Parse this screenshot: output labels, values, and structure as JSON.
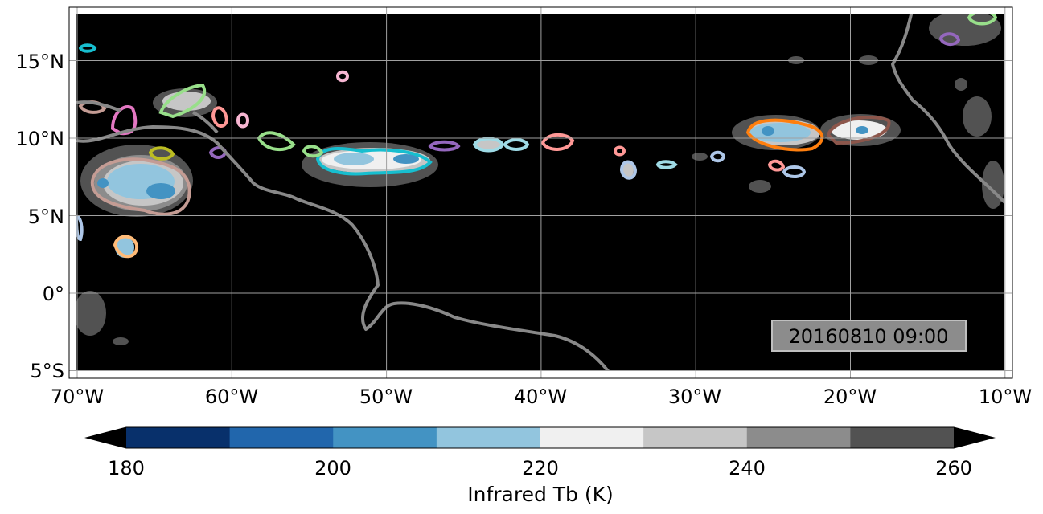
{
  "map": {
    "timestamp": "20160810 09:00",
    "longitude_ticks": [
      "70°W",
      "60°W",
      "50°W",
      "40°W",
      "30°W",
      "20°W",
      "10°W"
    ],
    "latitude_ticks": [
      "15°N",
      "10°N",
      "5°N",
      "0°",
      "5°S"
    ],
    "extent": {
      "lon": [
        -70,
        -10
      ],
      "lat": [
        -5.5,
        18.5
      ]
    },
    "grid": true,
    "background_color": "#000000",
    "coastline_color": "#888888"
  },
  "colorbar": {
    "label": "Infrared Tb (K)",
    "tick_labels": [
      "180",
      "200",
      "220",
      "240",
      "260"
    ],
    "levels": [
      180,
      190,
      200,
      210,
      220,
      230,
      240,
      250,
      260
    ],
    "colors": [
      "#08306b",
      "#2166ac",
      "#4393c3",
      "#92c5de",
      "#f0f0f0",
      "#c6c6c6",
      "#8c8c8c",
      "#525252"
    ],
    "extend": "both",
    "under_color": "#000000",
    "over_color": "#000000"
  },
  "legend_colors": {
    "track_colors": [
      "#1f77b4",
      "#ff7f0e",
      "#2ca02c",
      "#d62728",
      "#9467bd",
      "#8c564b",
      "#e377c2",
      "#bcbd22",
      "#17becf",
      "#aec7e8",
      "#ffbb78",
      "#98df8a",
      "#ff9896",
      "#c5b0d5",
      "#c49c94",
      "#f7b6d2",
      "#9edae5"
    ]
  }
}
